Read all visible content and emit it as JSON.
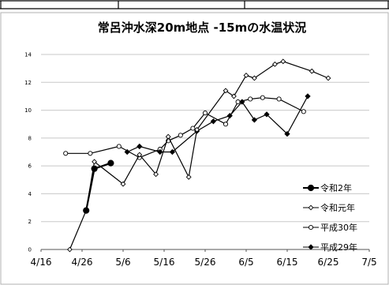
{
  "chart_data": {
    "type": "line",
    "title": "常呂沖水深20m地点  -15mの水温状況",
    "xlabel": "",
    "ylabel": "",
    "x_ticks": [
      "4/16",
      "4/26",
      "5/6",
      "5/16",
      "5/26",
      "6/5",
      "6/15",
      "6/25",
      "7/5"
    ],
    "xlim": [
      "4/16",
      "7/5"
    ],
    "ylim": [
      0,
      14
    ],
    "y_ticks": [
      0,
      2,
      4,
      6,
      8,
      10,
      12,
      14
    ],
    "grid": "horizontal",
    "legend_position": "right",
    "series": [
      {
        "name": "令和2年",
        "marker": "filled-circle",
        "color": "#000000",
        "points": [
          [
            "4/27",
            2.8
          ],
          [
            "4/29",
            5.8
          ],
          [
            "5/3",
            6.2
          ]
        ]
      },
      {
        "name": "令和元年",
        "marker": "open-diamond",
        "color": "#000000",
        "points": [
          [
            "4/23",
            0.0
          ],
          [
            "4/27",
            2.8
          ],
          [
            "4/29",
            6.3
          ],
          [
            "5/6",
            4.7
          ],
          [
            "5/10",
            6.8
          ],
          [
            "5/14",
            5.4
          ],
          [
            "5/17",
            8.1
          ],
          [
            "5/22",
            5.2
          ],
          [
            "5/24",
            8.6
          ],
          [
            "5/31",
            11.4
          ],
          [
            "6/2",
            11.0
          ],
          [
            "6/5",
            12.5
          ],
          [
            "6/7",
            12.3
          ],
          [
            "6/12",
            13.3
          ],
          [
            "6/14",
            13.5
          ],
          [
            "6/21",
            12.8
          ],
          [
            "6/25",
            12.3
          ]
        ]
      },
      {
        "name": "平成30年",
        "marker": "open-circle",
        "color": "#000000",
        "points": [
          [
            "4/22",
            6.9
          ],
          [
            "4/28",
            6.9
          ],
          [
            "5/5",
            7.4
          ],
          [
            "5/10",
            6.6
          ],
          [
            "5/15",
            7.2
          ],
          [
            "5/17",
            7.8
          ],
          [
            "5/20",
            8.2
          ],
          [
            "5/23",
            8.7
          ],
          [
            "5/26",
            9.8
          ],
          [
            "5/31",
            9.0
          ],
          [
            "6/3",
            10.6
          ],
          [
            "6/6",
            10.8
          ],
          [
            "6/9",
            10.9
          ],
          [
            "6/13",
            10.8
          ],
          [
            "6/19",
            9.9
          ]
        ]
      },
      {
        "name": "平成29年",
        "marker": "filled-diamond",
        "color": "#000000",
        "points": [
          [
            "5/7",
            7.0
          ],
          [
            "5/10",
            7.4
          ],
          [
            "5/15",
            7.0
          ],
          [
            "5/18",
            7.0
          ],
          [
            "5/24",
            8.5
          ],
          [
            "5/28",
            9.2
          ],
          [
            "6/1",
            9.6
          ],
          [
            "6/4",
            10.6
          ],
          [
            "6/7",
            9.3
          ],
          [
            "6/10",
            9.7
          ],
          [
            "6/15",
            8.3
          ],
          [
            "6/20",
            11.0
          ]
        ]
      }
    ]
  }
}
